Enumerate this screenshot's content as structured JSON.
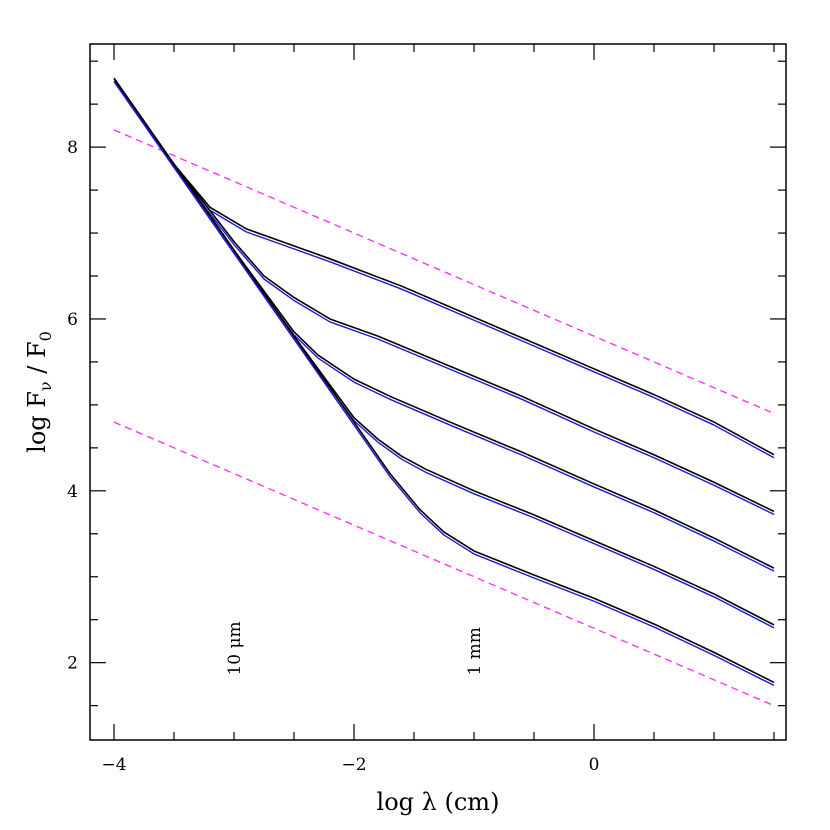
{
  "chart_data": {
    "type": "line",
    "xlabel": "log λ (cm)",
    "ylabel_main": "log F",
    "ylabel_sub1": "ν",
    "ylabel_mid": " / F",
    "ylabel_sub2": "0",
    "xlim": [
      -4.2,
      1.6
    ],
    "ylim": [
      1.1,
      9.2
    ],
    "x_ticks": [
      -4,
      -2,
      0
    ],
    "x_tick_labels": [
      "−4",
      "−2",
      "0"
    ],
    "y_ticks": [
      2,
      4,
      6,
      8
    ],
    "y_tick_labels": [
      "2",
      "4",
      "6",
      "8"
    ],
    "annotations": [
      {
        "text": "10 μm",
        "x": -3,
        "y": 1.85
      },
      {
        "text": "1 mm",
        "x": -1,
        "y": 1.85
      }
    ],
    "colors": {
      "model_black": "#000000",
      "model_blue": "#1a1ad6",
      "limit": "#ff33ff"
    },
    "limit_lines": [
      {
        "x": [
          -4,
          1.5
        ],
        "y": [
          8.2,
          4.9
        ]
      },
      {
        "x": [
          -4,
          1.5
        ],
        "y": [
          4.8,
          1.5
        ]
      }
    ],
    "series": [
      {
        "x": [
          -4,
          -3.5,
          -3.2,
          -2.9,
          -2.6,
          -2.2,
          -1.6,
          -1.0,
          -0.5,
          0.0,
          0.5,
          1.0,
          1.5
        ],
        "y": [
          8.8,
          7.8,
          7.3,
          7.05,
          6.9,
          6.7,
          6.38,
          6.02,
          5.72,
          5.42,
          5.12,
          4.8,
          4.42
        ]
      },
      {
        "x": [
          -4,
          -3.5,
          -3.0,
          -2.75,
          -2.5,
          -2.2,
          -1.8,
          -1.2,
          -0.6,
          0.0,
          0.5,
          1.0,
          1.5
        ],
        "y": [
          8.8,
          7.8,
          6.9,
          6.5,
          6.25,
          6.0,
          5.8,
          5.45,
          5.1,
          4.72,
          4.42,
          4.1,
          3.76
        ]
      },
      {
        "x": [
          -4,
          -3.5,
          -3.0,
          -2.5,
          -2.3,
          -2.0,
          -1.7,
          -1.2,
          -0.6,
          0.0,
          0.5,
          1.0,
          1.5
        ],
        "y": [
          8.8,
          7.8,
          6.8,
          5.85,
          5.58,
          5.3,
          5.1,
          4.8,
          4.45,
          4.08,
          3.78,
          3.45,
          3.1
        ]
      },
      {
        "x": [
          -4,
          -3.5,
          -3.0,
          -2.5,
          -2.0,
          -1.8,
          -1.6,
          -1.4,
          -1.0,
          -0.5,
          0.0,
          0.5,
          1.0,
          1.5
        ],
        "y": [
          8.8,
          7.8,
          6.8,
          5.8,
          4.85,
          4.6,
          4.4,
          4.25,
          4.0,
          3.72,
          3.42,
          3.12,
          2.8,
          2.44
        ]
      },
      {
        "x": [
          -4,
          -3.5,
          -3.0,
          -2.5,
          -2.0,
          -1.7,
          -1.45,
          -1.25,
          -1.0,
          -0.5,
          0.0,
          0.5,
          1.0,
          1.5
        ],
        "y": [
          8.8,
          7.8,
          6.8,
          5.8,
          4.8,
          4.2,
          3.78,
          3.52,
          3.3,
          3.02,
          2.75,
          2.45,
          2.12,
          1.77
        ]
      }
    ]
  }
}
